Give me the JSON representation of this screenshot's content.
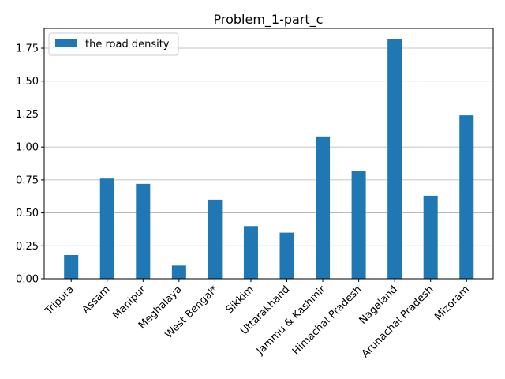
{
  "chart_data": {
    "type": "bar",
    "title": "Problem_1-part_c",
    "xlabel": "",
    "ylabel": "",
    "categories": [
      "Tripura",
      "Assam",
      "Manipur",
      "Meghalaya",
      "West Bengal*",
      "Sikkim",
      "Uttarakhand",
      "Jammu & Kashmir",
      "Himachal Pradesh",
      "Nagaland",
      "Arunachal Pradesh",
      "Mizoram"
    ],
    "series": [
      {
        "name": "the road density",
        "color": "#1f77b4",
        "values": [
          0.18,
          0.76,
          0.72,
          0.1,
          0.6,
          0.4,
          0.35,
          1.08,
          0.82,
          1.82,
          0.63,
          1.24
        ]
      }
    ],
    "ylim": [
      0,
      1.9
    ],
    "yticks": [
      0.0,
      0.25,
      0.5,
      0.75,
      1.0,
      1.25,
      1.5,
      1.75
    ],
    "ytick_labels": [
      "0.00",
      "0.25",
      "0.50",
      "0.75",
      "1.00",
      "1.25",
      "1.50",
      "1.75"
    ],
    "grid": "y",
    "legend": "upper-left"
  }
}
